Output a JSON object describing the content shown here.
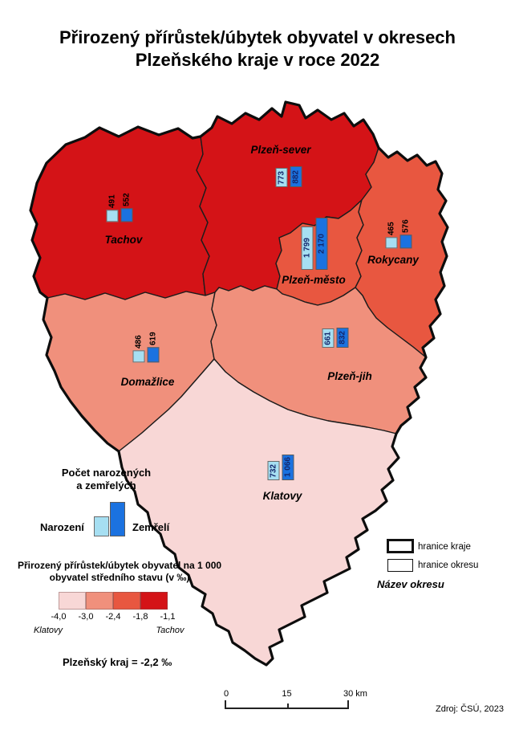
{
  "title": {
    "line1": "Přirozený přírůstek/úbytek obyvatel v okresech",
    "line2": "Plzeňského kraje v roce 2022"
  },
  "map": {
    "districts": [
      {
        "id": "tachov",
        "name": "Tachov",
        "born": "491",
        "died": "552",
        "label_style": "above",
        "color": "#D41317"
      },
      {
        "id": "plzen-sever",
        "name": "Plzeň-sever",
        "born": "773",
        "died": "882",
        "label_style": "inside",
        "color": "#D41317"
      },
      {
        "id": "plzen-mesto",
        "name": "Plzeň-město",
        "born": "1 799",
        "died": "2 170",
        "label_style": "inside",
        "color": "#E85740"
      },
      {
        "id": "rokycany",
        "name": "Rokycany",
        "born": "465",
        "died": "576",
        "label_style": "above",
        "color": "#E85740"
      },
      {
        "id": "domazlice",
        "name": "Domažlice",
        "born": "486",
        "died": "619",
        "label_style": "above",
        "color": "#F0907C"
      },
      {
        "id": "plzen-jih",
        "name": "Plzeň-jih",
        "born": "661",
        "died": "832",
        "label_style": "inside",
        "color": "#F0907C"
      },
      {
        "id": "klatovy",
        "name": "Klatovy",
        "born": "732",
        "died": "1 066",
        "label_style": "inside",
        "color": "#F8D7D6"
      }
    ],
    "bar_colors": {
      "born": "#A6DFF2",
      "died": "#1B72E0"
    }
  },
  "legend_bars": {
    "title_line1": "Počet narozených",
    "title_line2": "a zemřelých",
    "left_label": "Narození",
    "right_label": "Zemřelí"
  },
  "legend_scale": {
    "title_line1": "Přirozený přírůstek/úbytek obyvatel na 1 000",
    "title_line2": "obyvatel středního stavu (v ‰)",
    "ticks": [
      "-4,0",
      "-3,0",
      "-2,4",
      "-1,8",
      "-1,1"
    ],
    "min_area_label": "Klatovy",
    "max_area_label": "Tachov",
    "colors": [
      "#F8D7D6",
      "#F0907C",
      "#E85740",
      "#D41317"
    ]
  },
  "region_note": "Plzeňský kraj = -2,2 ‰",
  "legend_boundaries": {
    "kraj_label": "hranice kraje",
    "okres_label": "hranice okresu",
    "name_label": "Název okresu"
  },
  "scalebar": {
    "labels": [
      "0",
      "15",
      "30 km"
    ]
  },
  "source": "Zdroj: ČSÚ, 2023",
  "chart_data": {
    "type": "bar",
    "title": "Přirozený přírůstek/úbytek obyvatel v okresech Plzeňského kraje v roce 2022",
    "categories": [
      "Tachov",
      "Plzeň-sever",
      "Plzeň-město",
      "Rokycany",
      "Domažlice",
      "Plzeň-jih",
      "Klatovy"
    ],
    "series": [
      {
        "name": "Narození",
        "values": [
          491,
          773,
          1799,
          465,
          486,
          661,
          732
        ]
      },
      {
        "name": "Zemřelí",
        "values": [
          552,
          882,
          2170,
          576,
          619,
          832,
          1066
        ]
      }
    ],
    "choropleth": {
      "variable": "Přirozený přírůstek/úbytek obyvatel na 1 000 obyvatel středního stavu (v ‰)",
      "class_breaks": [
        -4.0,
        -3.0,
        -2.4,
        -1.8,
        -1.1
      ],
      "region_value_permille": -2.2
    }
  }
}
